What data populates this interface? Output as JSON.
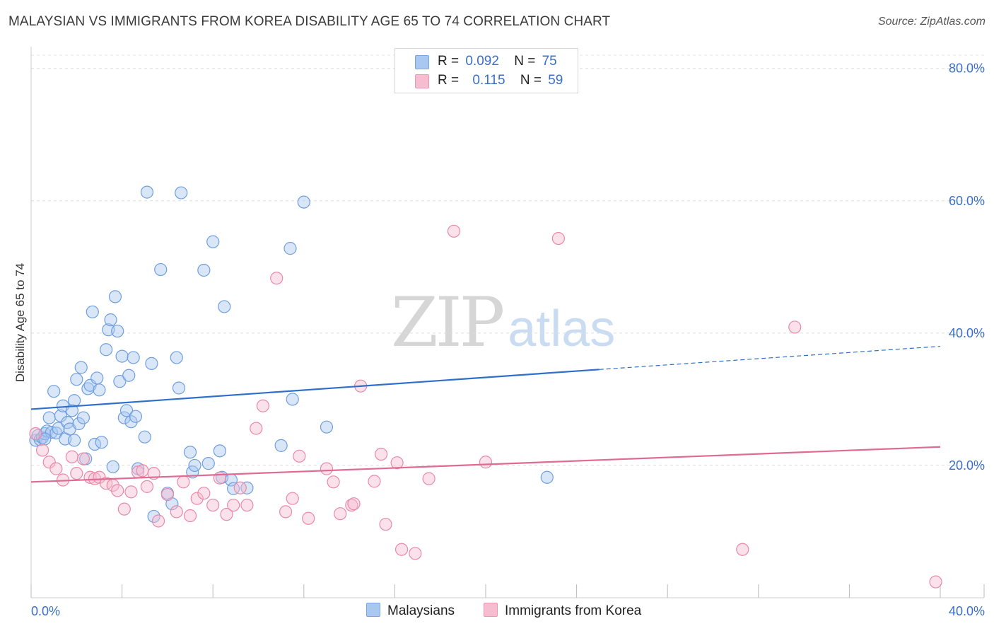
{
  "title": "MALAYSIAN VS IMMIGRANTS FROM KOREA DISABILITY AGE 65 TO 74 CORRELATION CHART",
  "source": "Source: ZipAtlas.com",
  "watermark": {
    "zip": "ZIP",
    "atlas": "atlas"
  },
  "legend": {
    "rows": [
      {
        "r_label": "R =",
        "r_value": "0.092",
        "n_label": "N =",
        "n_value": "75",
        "color": "#a9c8f0"
      },
      {
        "r_label": "R =",
        "r_value": "0.115",
        "n_label": "N =",
        "n_value": "59",
        "color": "#f6bccf"
      }
    ]
  },
  "bottom_legend": [
    {
      "label": "Malaysians",
      "color": "#a9c8f0"
    },
    {
      "label": "Immigrants from Korea",
      "color": "#f6bccf"
    }
  ],
  "chart_data": {
    "type": "scatter",
    "title": "MALAYSIAN VS IMMIGRANTS FROM KOREA DISABILITY AGE 65 TO 74 CORRELATION CHART",
    "xlabel": "",
    "ylabel": "Disability Age 65 to 74",
    "xlim": [
      0,
      40
    ],
    "ylim": [
      0,
      82
    ],
    "x_ticks": [
      "0.0%",
      "40.0%"
    ],
    "y_ticks": [
      {
        "value": 20,
        "label": "20.0%"
      },
      {
        "value": 40,
        "label": "40.0%"
      },
      {
        "value": 60,
        "label": "60.0%"
      },
      {
        "value": 80,
        "label": "80.0%"
      }
    ],
    "grid": true,
    "legend_position": "top-center",
    "series": [
      {
        "name": "Malaysians",
        "color": "#6f9fe0",
        "fill": "#a9c8f0",
        "trend": {
          "x_start": 0,
          "y_start": 28.5,
          "x_end": 25,
          "y_end": 34.5,
          "dash_x_end": 40,
          "dash_y_end": 38.0,
          "color": "#2e6fcc"
        },
        "points": [
          [
            0.2,
            23.8
          ],
          [
            0.3,
            24.5
          ],
          [
            0.4,
            23.9
          ],
          [
            0.5,
            24.2
          ],
          [
            0.6,
            24.8
          ],
          [
            0.7,
            25.2
          ],
          [
            0.8,
            27.2
          ],
          [
            0.9,
            25.0
          ],
          [
            1.0,
            31.2
          ],
          [
            1.1,
            24.9
          ],
          [
            1.2,
            25.6
          ],
          [
            1.3,
            27.5
          ],
          [
            1.4,
            29.0
          ],
          [
            1.5,
            24.0
          ],
          [
            1.6,
            26.5
          ],
          [
            1.7,
            25.5
          ],
          [
            1.8,
            28.3
          ],
          [
            1.9,
            29.8
          ],
          [
            2.0,
            33.0
          ],
          [
            2.1,
            26.3
          ],
          [
            2.2,
            34.8
          ],
          [
            2.3,
            27.2
          ],
          [
            2.4,
            21.0
          ],
          [
            2.5,
            31.6
          ],
          [
            2.6,
            32.1
          ],
          [
            2.7,
            43.2
          ],
          [
            2.8,
            23.2
          ],
          [
            2.9,
            33.2
          ],
          [
            3.0,
            31.4
          ],
          [
            3.1,
            23.5
          ],
          [
            3.3,
            37.5
          ],
          [
            3.4,
            40.5
          ],
          [
            3.5,
            42.0
          ],
          [
            3.6,
            19.8
          ],
          [
            3.7,
            45.5
          ],
          [
            3.8,
            40.3
          ],
          [
            3.9,
            32.7
          ],
          [
            4.0,
            36.5
          ],
          [
            4.1,
            27.2
          ],
          [
            4.2,
            28.3
          ],
          [
            4.3,
            33.6
          ],
          [
            4.4,
            26.6
          ],
          [
            4.5,
            36.3
          ],
          [
            4.6,
            27.4
          ],
          [
            4.7,
            19.5
          ],
          [
            5.0,
            24.3
          ],
          [
            5.1,
            61.3
          ],
          [
            5.3,
            35.4
          ],
          [
            5.4,
            12.3
          ],
          [
            5.7,
            49.6
          ],
          [
            6.0,
            15.8
          ],
          [
            6.2,
            14.2
          ],
          [
            6.4,
            36.3
          ],
          [
            6.5,
            31.7
          ],
          [
            6.6,
            61.2
          ],
          [
            7.0,
            22.0
          ],
          [
            7.1,
            19.0
          ],
          [
            7.2,
            20.0
          ],
          [
            7.6,
            49.5
          ],
          [
            7.8,
            20.3
          ],
          [
            8.0,
            53.8
          ],
          [
            8.3,
            22.2
          ],
          [
            8.4,
            18.2
          ],
          [
            8.5,
            44.0
          ],
          [
            8.8,
            17.8
          ],
          [
            8.9,
            16.5
          ],
          [
            9.5,
            16.6
          ],
          [
            11.0,
            23.0
          ],
          [
            11.4,
            52.8
          ],
          [
            11.5,
            30.0
          ],
          [
            12.0,
            59.8
          ],
          [
            13.0,
            25.8
          ],
          [
            22.7,
            18.2
          ],
          [
            0.6,
            24.0
          ],
          [
            1.9,
            23.8
          ]
        ]
      },
      {
        "name": "Immigrants from Korea",
        "color": "#e88aa8",
        "fill": "#f6bccf",
        "trend": {
          "x_start": 0,
          "y_start": 17.5,
          "x_end": 40,
          "y_end": 22.8,
          "color": "#e06a93"
        },
        "points": [
          [
            0.2,
            24.8
          ],
          [
            0.5,
            22.3
          ],
          [
            0.8,
            20.5
          ],
          [
            1.1,
            19.5
          ],
          [
            1.4,
            17.8
          ],
          [
            1.8,
            21.3
          ],
          [
            2.0,
            18.8
          ],
          [
            2.3,
            21.0
          ],
          [
            2.6,
            18.2
          ],
          [
            2.8,
            18.0
          ],
          [
            3.0,
            18.2
          ],
          [
            3.3,
            17.3
          ],
          [
            3.6,
            17.0
          ],
          [
            3.8,
            16.2
          ],
          [
            4.1,
            13.4
          ],
          [
            4.4,
            16.0
          ],
          [
            4.7,
            19.0
          ],
          [
            4.9,
            19.2
          ],
          [
            5.1,
            16.8
          ],
          [
            5.4,
            18.8
          ],
          [
            5.6,
            11.6
          ],
          [
            6.0,
            15.6
          ],
          [
            6.4,
            13.0
          ],
          [
            6.7,
            17.5
          ],
          [
            7.0,
            12.4
          ],
          [
            7.3,
            15.0
          ],
          [
            7.6,
            15.8
          ],
          [
            8.0,
            14.0
          ],
          [
            8.3,
            18.1
          ],
          [
            8.6,
            12.6
          ],
          [
            8.9,
            14.0
          ],
          [
            9.2,
            16.6
          ],
          [
            9.5,
            14.0
          ],
          [
            9.9,
            25.6
          ],
          [
            10.2,
            29.0
          ],
          [
            10.8,
            48.3
          ],
          [
            11.2,
            13.0
          ],
          [
            11.5,
            15.0
          ],
          [
            11.8,
            21.4
          ],
          [
            12.2,
            12.0
          ],
          [
            13.0,
            19.5
          ],
          [
            13.3,
            17.5
          ],
          [
            13.6,
            12.7
          ],
          [
            14.1,
            14.0
          ],
          [
            14.2,
            14.2
          ],
          [
            14.5,
            32.0
          ],
          [
            15.1,
            17.6
          ],
          [
            15.4,
            21.7
          ],
          [
            15.6,
            11.1
          ],
          [
            16.1,
            20.4
          ],
          [
            16.3,
            7.3
          ],
          [
            16.9,
            6.7
          ],
          [
            17.5,
            18.0
          ],
          [
            18.6,
            55.4
          ],
          [
            20.0,
            20.5
          ],
          [
            23.2,
            54.3
          ],
          [
            31.3,
            7.3
          ],
          [
            33.6,
            40.9
          ],
          [
            39.8,
            2.4
          ]
        ]
      }
    ]
  }
}
